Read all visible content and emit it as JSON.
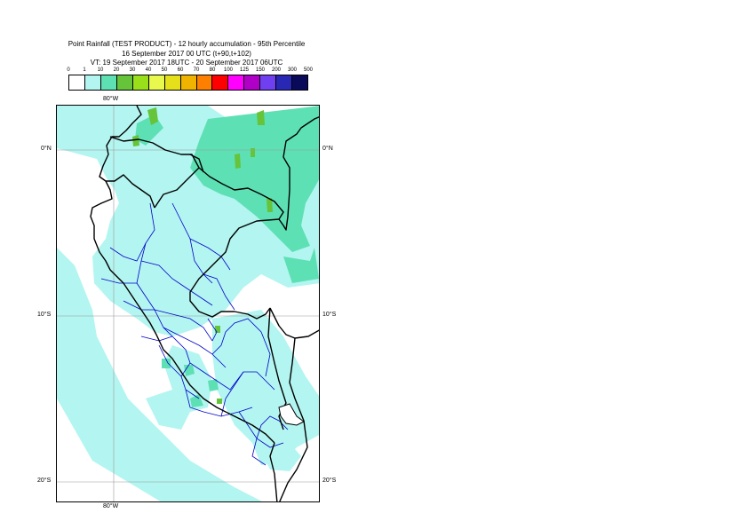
{
  "header": {
    "line1": "Point Rainfall (TEST PRODUCT) - 12 hourly accumulation - 95th Percentile",
    "line2": "16 September 2017 00 UTC (t+90,t+102)",
    "line3": "VT: 19 September 2017 18UTC - 20 September 2017 06UTC"
  },
  "legend": {
    "ticks": [
      "0",
      "1",
      "10",
      "20",
      "30",
      "40",
      "50",
      "60",
      "70",
      "80",
      "100",
      "125",
      "150",
      "200",
      "300",
      "500"
    ],
    "colors": [
      "#ffffff",
      "#b3f5f0",
      "#5ee0b5",
      "#66c43a",
      "#99e01a",
      "#e8f84d",
      "#e6e01a",
      "#f0b400",
      "#ff8000",
      "#ff0000",
      "#ff00ff",
      "#b000c8",
      "#7040f0",
      "#2828b4",
      "#0a0a5a"
    ]
  },
  "map": {
    "lon_labels": [
      "80°W",
      "80°W"
    ],
    "lat_labels": [
      "0°N",
      "0°N",
      "10°S",
      "10°S",
      "20°S",
      "20°S"
    ],
    "colors": {
      "light": "#b3f5f0",
      "medium": "#5ee0b5",
      "heavy": "#66c43a",
      "country": "#000000",
      "region": "#0000cc"
    }
  }
}
